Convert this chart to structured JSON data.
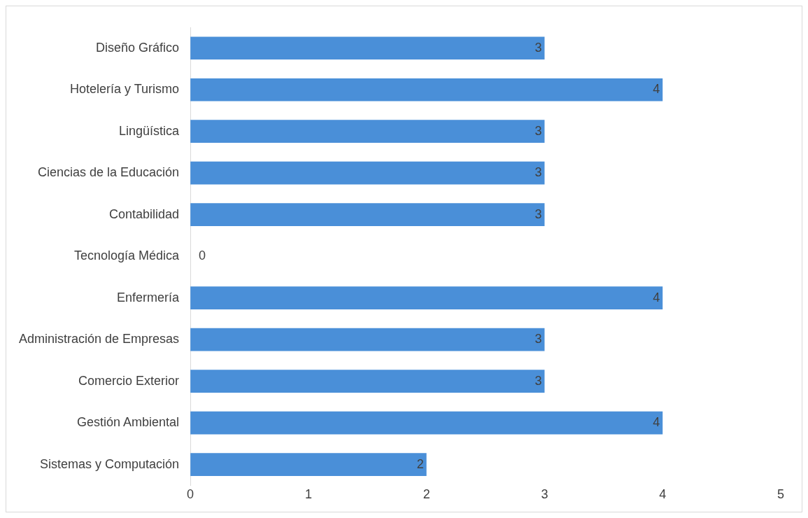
{
  "chart_data": {
    "type": "bar",
    "orientation": "horizontal",
    "categories": [
      "Diseño Gráfico",
      "Hotelería y Turismo",
      "Lingüística",
      "Ciencias de la Educación",
      "Contabilidad",
      "Tecnología Médica",
      "Enfermería",
      "Administración de Empresas",
      "Comercio Exterior",
      "Gestión Ambiental",
      "Sistemas y Computación"
    ],
    "values": [
      3,
      4,
      3,
      3,
      3,
      0,
      4,
      3,
      3,
      4,
      2
    ],
    "color": "#4a8fd8",
    "xlim": [
      0,
      5
    ],
    "xticks": [
      0,
      1,
      2,
      3,
      4,
      5
    ],
    "data_labels": true
  }
}
